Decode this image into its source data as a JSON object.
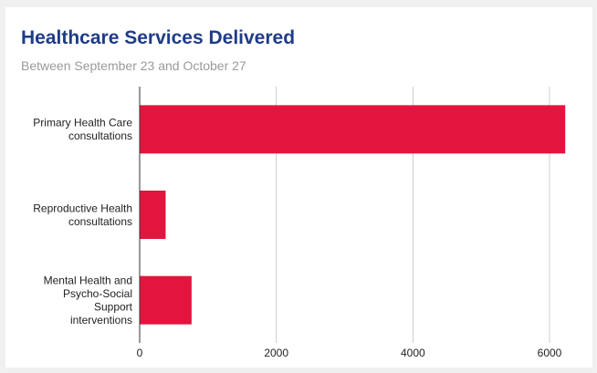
{
  "title": "Healthcare Services Delivered",
  "subtitle": "Between September 23 and October 27",
  "chart_data": {
    "type": "bar",
    "orientation": "horizontal",
    "title": "Healthcare Services Delivered",
    "subtitle": "Between September 23 and October 27",
    "categories": [
      "Primary Health Care consultations",
      "Reproductive Health consultations",
      "Mental Health and Psycho-Social Support interventions"
    ],
    "category_lines": [
      [
        "Primary Health Care",
        "consultations"
      ],
      [
        "Reproductive Health",
        "consultations"
      ],
      [
        "Mental Health and",
        "Psycho-Social",
        "Support",
        "interventions"
      ]
    ],
    "values": [
      6230,
      380,
      760
    ],
    "xlabel": "",
    "ylabel": "",
    "xlim": [
      0,
      6500
    ],
    "ticks": [
      0,
      2000,
      4000,
      6000
    ],
    "tick_labels": [
      "0",
      "2000",
      "4000",
      "6000"
    ],
    "grid": true,
    "legend": "none",
    "bar_color": "#e3153f",
    "title_color": "#1f3c88",
    "subtitle_color": "#9a9a9a"
  }
}
